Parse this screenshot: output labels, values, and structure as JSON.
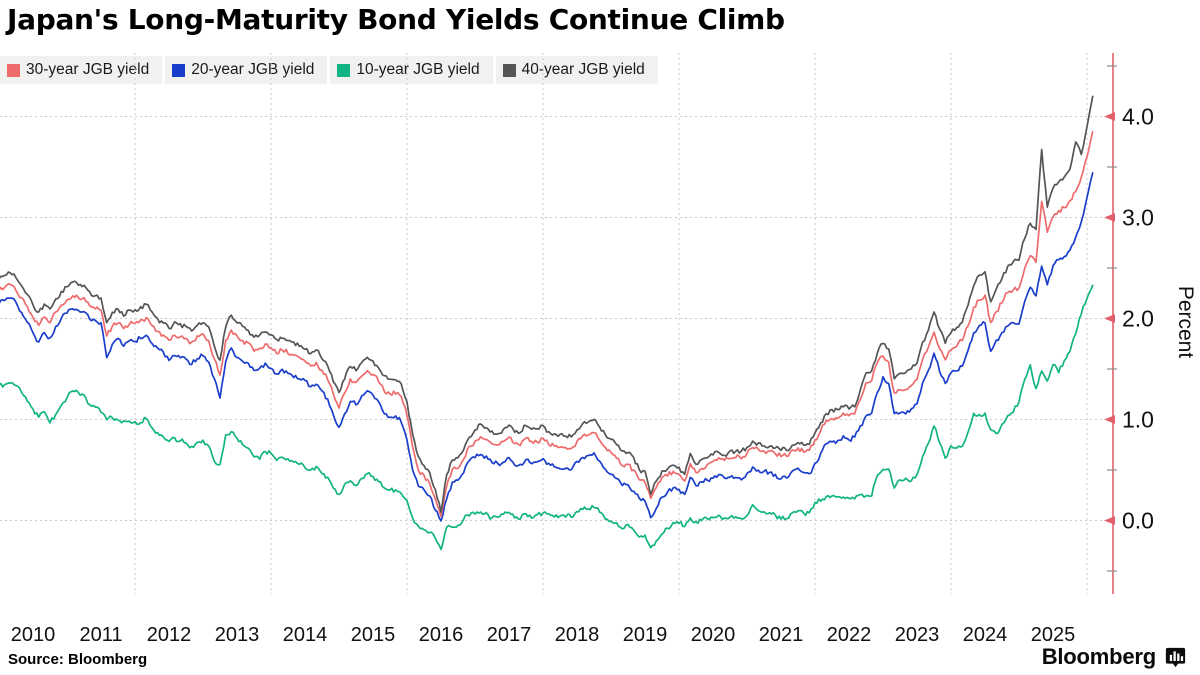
{
  "title": "Japan's Long-Maturity Bond Yields Continue Climb",
  "source_label": "Source: Bloomberg",
  "brand_label": "Bloomberg",
  "colors": {
    "axis": "#e2606c",
    "grid": "#c9c9c9",
    "minor_tick": "#8f8f8f",
    "text": "#111111",
    "legend_bg": "#f1f1ef",
    "series_30y": "#ee6b6c",
    "series_20y": "#1a3ecb",
    "series_10y": "#12b483",
    "series_40y": "#555555"
  },
  "chart_data": {
    "type": "line",
    "title": "Japan's Long-Maturity Bond Yields Continue Climb",
    "xlabel": "",
    "ylabel": "Percent",
    "x_unit": "monthly, Jan 2010 - Jan 2026",
    "x_start_year": 2010,
    "x_end_year": 2026.08,
    "ylim": [
      -0.85,
      4.6
    ],
    "grid": true,
    "legend_position": "top-left",
    "yticks": [
      0,
      1,
      2,
      3,
      4
    ],
    "ytick_labels": [
      "0.0",
      "1.0",
      "2.0",
      "3.0",
      "4.0"
    ],
    "yticks_minor": [
      -0.5,
      0.5,
      1.5,
      2.5,
      3.5,
      4.5
    ],
    "xtick_labels": [
      "2010",
      "2011",
      "2012",
      "2013",
      "2014",
      "2015",
      "2016",
      "2017",
      "2018",
      "2019",
      "2020",
      "2021",
      "2022",
      "2023",
      "2024",
      "2025"
    ],
    "grid_years": [
      2012,
      2014,
      2016,
      2018,
      2020,
      2022,
      2024,
      2026
    ],
    "series": [
      {
        "name": "30-year JGB yield",
        "color": "#ee6b6c",
        "values": [
          2.28,
          2.31,
          2.33,
          2.28,
          2.2,
          2.11,
          2.01,
          1.93,
          2.02,
          1.96,
          2.06,
          2.13,
          2.18,
          2.22,
          2.21,
          2.2,
          2.13,
          2.1,
          2.08,
          1.82,
          1.93,
          1.96,
          1.9,
          1.95,
          1.95,
          1.98,
          2.0,
          1.93,
          1.87,
          1.83,
          1.78,
          1.84,
          1.82,
          1.8,
          1.76,
          1.82,
          1.84,
          1.78,
          1.6,
          1.44,
          1.78,
          1.89,
          1.82,
          1.78,
          1.75,
          1.68,
          1.7,
          1.74,
          1.71,
          1.66,
          1.69,
          1.66,
          1.63,
          1.61,
          1.58,
          1.53,
          1.56,
          1.48,
          1.4,
          1.25,
          1.12,
          1.26,
          1.4,
          1.36,
          1.43,
          1.48,
          1.45,
          1.38,
          1.28,
          1.25,
          1.26,
          1.22,
          1.04,
          0.72,
          0.5,
          0.44,
          0.36,
          0.21,
          0.05,
          0.35,
          0.5,
          0.52,
          0.6,
          0.73,
          0.78,
          0.83,
          0.8,
          0.76,
          0.74,
          0.78,
          0.83,
          0.76,
          0.75,
          0.81,
          0.78,
          0.78,
          0.81,
          0.76,
          0.74,
          0.73,
          0.72,
          0.71,
          0.78,
          0.84,
          0.85,
          0.87,
          0.8,
          0.72,
          0.68,
          0.62,
          0.55,
          0.55,
          0.5,
          0.4,
          0.38,
          0.22,
          0.33,
          0.43,
          0.45,
          0.48,
          0.45,
          0.39,
          0.56,
          0.48,
          0.52,
          0.55,
          0.58,
          0.62,
          0.6,
          0.62,
          0.63,
          0.62,
          0.66,
          0.73,
          0.7,
          0.68,
          0.68,
          0.66,
          0.64,
          0.64,
          0.69,
          0.72,
          0.68,
          0.69,
          0.79,
          0.89,
          0.99,
          1.0,
          1.01,
          1.06,
          1.03,
          1.06,
          1.19,
          1.36,
          1.39,
          1.56,
          1.63,
          1.56,
          1.26,
          1.29,
          1.29,
          1.33,
          1.39,
          1.59,
          1.71,
          1.87,
          1.7,
          1.59,
          1.69,
          1.73,
          1.79,
          1.93,
          2.11,
          2.19,
          2.23,
          1.96,
          2.06,
          2.16,
          2.26,
          2.29,
          2.3,
          2.5,
          2.63,
          2.56,
          3.15,
          2.86,
          3.0,
          3.06,
          3.1,
          3.16,
          3.26,
          3.4,
          3.6,
          3.85
        ]
      },
      {
        "name": "20-year JGB yield",
        "color": "#1a3ecb",
        "values": [
          2.15,
          2.18,
          2.2,
          2.16,
          2.06,
          1.96,
          1.86,
          1.76,
          1.86,
          1.8,
          1.92,
          2.0,
          2.06,
          2.1,
          2.08,
          2.07,
          2.0,
          1.98,
          1.95,
          1.62,
          1.75,
          1.8,
          1.72,
          1.78,
          1.78,
          1.81,
          1.84,
          1.76,
          1.7,
          1.66,
          1.58,
          1.64,
          1.62,
          1.6,
          1.55,
          1.61,
          1.63,
          1.56,
          1.4,
          1.22,
          1.58,
          1.7,
          1.62,
          1.58,
          1.55,
          1.48,
          1.5,
          1.56,
          1.51,
          1.45,
          1.49,
          1.45,
          1.42,
          1.4,
          1.38,
          1.32,
          1.35,
          1.28,
          1.2,
          1.05,
          0.92,
          1.06,
          1.18,
          1.15,
          1.23,
          1.28,
          1.25,
          1.18,
          1.05,
          1.02,
          1.03,
          0.98,
          0.8,
          0.5,
          0.34,
          0.3,
          0.24,
          0.11,
          -0.01,
          0.22,
          0.38,
          0.4,
          0.48,
          0.59,
          0.62,
          0.66,
          0.63,
          0.58,
          0.56,
          0.58,
          0.63,
          0.55,
          0.55,
          0.61,
          0.57,
          0.58,
          0.61,
          0.56,
          0.53,
          0.52,
          0.52,
          0.51,
          0.58,
          0.63,
          0.64,
          0.66,
          0.58,
          0.5,
          0.45,
          0.42,
          0.35,
          0.35,
          0.29,
          0.22,
          0.2,
          0.03,
          0.13,
          0.23,
          0.28,
          0.32,
          0.3,
          0.26,
          0.43,
          0.35,
          0.38,
          0.4,
          0.42,
          0.45,
          0.42,
          0.43,
          0.43,
          0.4,
          0.46,
          0.53,
          0.5,
          0.48,
          0.48,
          0.45,
          0.42,
          0.42,
          0.49,
          0.52,
          0.48,
          0.46,
          0.56,
          0.66,
          0.76,
          0.78,
          0.79,
          0.83,
          0.79,
          0.83,
          0.93,
          1.03,
          1.06,
          1.26,
          1.42,
          1.36,
          1.05,
          1.06,
          1.06,
          1.1,
          1.16,
          1.36,
          1.48,
          1.66,
          1.48,
          1.36,
          1.46,
          1.49,
          1.53,
          1.68,
          1.86,
          1.93,
          1.96,
          1.68,
          1.78,
          1.86,
          1.92,
          1.96,
          1.95,
          2.16,
          2.3,
          2.22,
          2.52,
          2.33,
          2.52,
          2.58,
          2.62,
          2.68,
          2.8,
          2.95,
          3.2,
          3.44
        ]
      },
      {
        "name": "10-year JGB yield",
        "color": "#12b483",
        "values": [
          1.33,
          1.35,
          1.36,
          1.34,
          1.27,
          1.18,
          1.1,
          1.03,
          1.07,
          0.97,
          1.05,
          1.15,
          1.22,
          1.28,
          1.26,
          1.24,
          1.15,
          1.12,
          1.08,
          1.0,
          1.02,
          1.0,
          0.98,
          0.99,
          0.98,
          0.97,
          1.01,
          0.92,
          0.87,
          0.83,
          0.78,
          0.81,
          0.79,
          0.77,
          0.73,
          0.78,
          0.79,
          0.74,
          0.58,
          0.56,
          0.85,
          0.88,
          0.82,
          0.75,
          0.71,
          0.63,
          0.6,
          0.69,
          0.66,
          0.6,
          0.63,
          0.61,
          0.58,
          0.56,
          0.53,
          0.5,
          0.53,
          0.47,
          0.43,
          0.32,
          0.26,
          0.36,
          0.4,
          0.34,
          0.42,
          0.46,
          0.44,
          0.38,
          0.33,
          0.31,
          0.3,
          0.27,
          0.2,
          0.02,
          -0.06,
          -0.09,
          -0.11,
          -0.18,
          -0.28,
          -0.06,
          -0.06,
          -0.05,
          0.02,
          0.05,
          0.07,
          0.08,
          0.07,
          0.02,
          0.04,
          0.06,
          0.08,
          0.03,
          0.02,
          0.07,
          0.03,
          0.05,
          0.08,
          0.06,
          0.04,
          0.04,
          0.04,
          0.04,
          0.09,
          0.11,
          0.12,
          0.13,
          0.09,
          0.01,
          0.0,
          -0.02,
          -0.08,
          -0.04,
          -0.1,
          -0.16,
          -0.15,
          -0.27,
          -0.21,
          -0.13,
          -0.08,
          -0.02,
          -0.02,
          -0.06,
          0.02,
          -0.01,
          0.0,
          0.02,
          0.02,
          0.05,
          0.02,
          0.03,
          0.03,
          0.02,
          0.05,
          0.16,
          0.1,
          0.09,
          0.08,
          0.05,
          0.02,
          0.02,
          0.07,
          0.1,
          0.07,
          0.07,
          0.17,
          0.2,
          0.24,
          0.24,
          0.24,
          0.23,
          0.21,
          0.22,
          0.25,
          0.25,
          0.25,
          0.44,
          0.5,
          0.5,
          0.32,
          0.4,
          0.42,
          0.4,
          0.46,
          0.64,
          0.76,
          0.94,
          0.77,
          0.62,
          0.73,
          0.71,
          0.73,
          0.88,
          1.06,
          1.05,
          1.06,
          0.9,
          0.86,
          0.95,
          1.04,
          1.08,
          1.18,
          1.4,
          1.54,
          1.3,
          1.48,
          1.38,
          1.55,
          1.47,
          1.58,
          1.68,
          1.85,
          2.05,
          2.2,
          2.33
        ]
      },
      {
        "name": "40-year JGB yield",
        "color": "#555555",
        "values": [
          2.4,
          2.43,
          2.45,
          2.4,
          2.32,
          2.23,
          2.13,
          2.06,
          2.14,
          2.09,
          2.19,
          2.26,
          2.31,
          2.36,
          2.33,
          2.32,
          2.26,
          2.23,
          2.2,
          1.95,
          2.06,
          2.09,
          2.03,
          2.08,
          2.08,
          2.11,
          2.14,
          2.06,
          1.99,
          1.96,
          1.9,
          1.96,
          1.94,
          1.92,
          1.88,
          1.94,
          1.96,
          1.91,
          1.72,
          1.58,
          1.92,
          2.03,
          1.96,
          1.92,
          1.88,
          1.81,
          1.83,
          1.87,
          1.83,
          1.79,
          1.81,
          1.79,
          1.76,
          1.73,
          1.7,
          1.66,
          1.69,
          1.61,
          1.53,
          1.38,
          1.26,
          1.41,
          1.53,
          1.49,
          1.56,
          1.61,
          1.58,
          1.51,
          1.43,
          1.39,
          1.4,
          1.36,
          1.17,
          0.85,
          0.63,
          0.55,
          0.47,
          0.3,
          0.08,
          0.45,
          0.6,
          0.62,
          0.7,
          0.83,
          0.89,
          0.95,
          0.92,
          0.88,
          0.86,
          0.9,
          0.95,
          0.88,
          0.88,
          0.94,
          0.9,
          0.91,
          0.93,
          0.88,
          0.86,
          0.85,
          0.84,
          0.83,
          0.9,
          0.96,
          0.97,
          1.0,
          0.92,
          0.85,
          0.8,
          0.75,
          0.68,
          0.68,
          0.62,
          0.5,
          0.48,
          0.26,
          0.39,
          0.49,
          0.52,
          0.55,
          0.52,
          0.46,
          0.66,
          0.56,
          0.6,
          0.62,
          0.65,
          0.68,
          0.65,
          0.68,
          0.69,
          0.68,
          0.73,
          0.79,
          0.76,
          0.74,
          0.74,
          0.72,
          0.7,
          0.7,
          0.75,
          0.78,
          0.74,
          0.76,
          0.86,
          0.96,
          1.06,
          1.09,
          1.09,
          1.13,
          1.11,
          1.13,
          1.29,
          1.46,
          1.49,
          1.66,
          1.76,
          1.69,
          1.41,
          1.46,
          1.46,
          1.51,
          1.56,
          1.76,
          1.89,
          2.06,
          1.89,
          1.76,
          1.86,
          1.91,
          1.96,
          2.13,
          2.33,
          2.43,
          2.46,
          2.16,
          2.29,
          2.39,
          2.51,
          2.56,
          2.58,
          2.8,
          2.95,
          2.88,
          3.68,
          3.1,
          3.3,
          3.35,
          3.4,
          3.48,
          3.75,
          3.62,
          3.9,
          4.2
        ]
      }
    ]
  }
}
